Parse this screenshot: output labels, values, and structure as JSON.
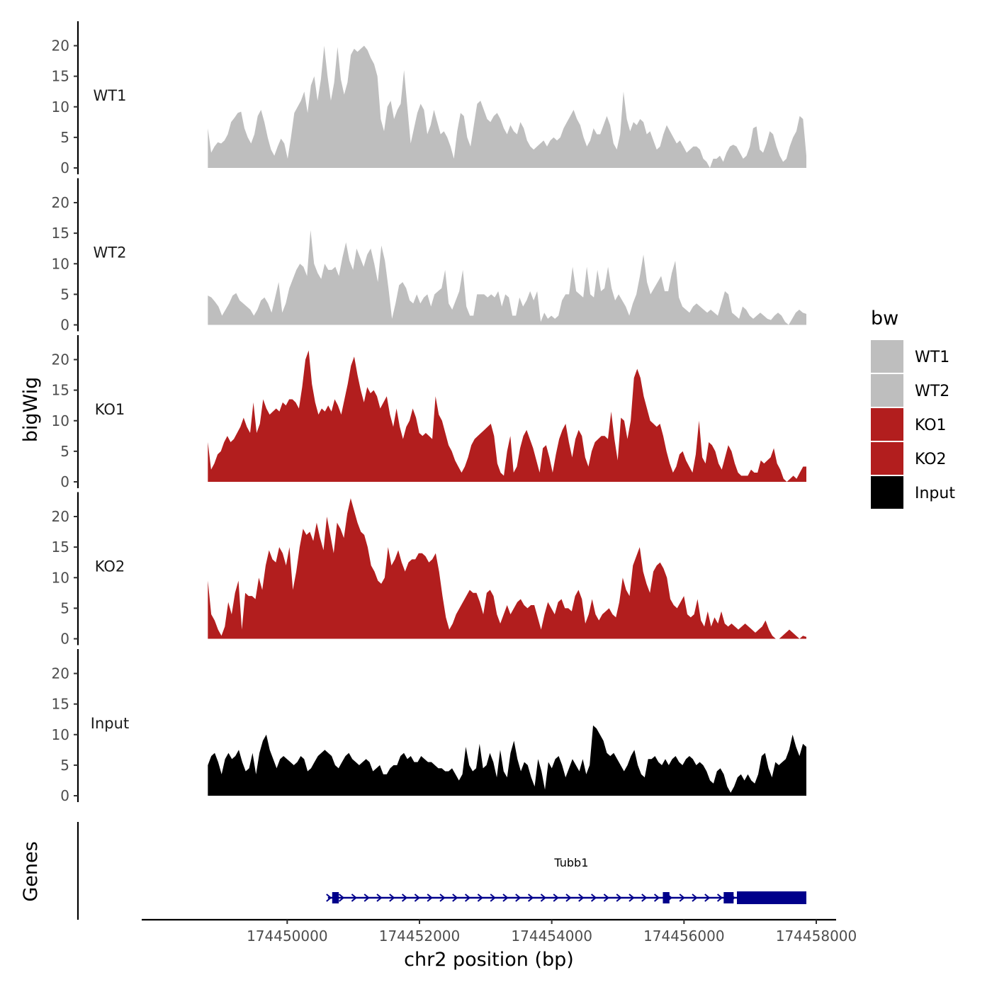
{
  "chart_data": {
    "type": "area",
    "region": {
      "chrom": "chr2",
      "start": 174448800,
      "end": 174457850
    },
    "xlabel": "chr2 position (bp)",
    "xlim": [
      174447800,
      174458300
    ],
    "x_ticks": [
      174450000,
      174452000,
      174454000,
      174456000,
      174458000
    ],
    "x_tick_labels": [
      "174450000",
      "174452000",
      "174454000",
      "174456000",
      "174458000"
    ],
    "ylabel": "bigWig",
    "ylim": [
      0,
      24
    ],
    "y_ticks": [
      0,
      5,
      10,
      15,
      20
    ],
    "y_tick_labels": [
      "0",
      "5",
      "10",
      "15",
      "20"
    ],
    "legend": {
      "title": "bw",
      "position": "right",
      "entries": [
        {
          "label": "WT1",
          "color": "#bebebe"
        },
        {
          "label": "WT2",
          "color": "#bebebe"
        },
        {
          "label": "KO1",
          "color": "#b21e1e"
        },
        {
          "label": "KO2",
          "color": "#b21e1e"
        },
        {
          "label": "Input",
          "color": "#000000"
        }
      ]
    },
    "tracks": [
      {
        "name": "WT1",
        "color": "#bebebe",
        "values": [
          6.5,
          2.5,
          3.5,
          4.2,
          4.0,
          4.5,
          5.5,
          7.5,
          8.2,
          9.0,
          9.2,
          6.5,
          5.0,
          4.0,
          5.5,
          8.5,
          9.5,
          7.5,
          5.0,
          3.0,
          2.0,
          3.5,
          4.8,
          4.0,
          1.5,
          5.0,
          9.0,
          10.0,
          11.0,
          12.5,
          9.0,
          13.5,
          15.0,
          11.0,
          14.5,
          20.0,
          15.0,
          11.0,
          14.0,
          19.8,
          14.5,
          12.0,
          14.0,
          18.5,
          19.5,
          19.0,
          19.5,
          20.0,
          19.3,
          18.0,
          17.0,
          15.0,
          8.0,
          6.0,
          10.0,
          11.0,
          8.0,
          9.5,
          10.5,
          16.0,
          10.0,
          4.0,
          6.5,
          9.0,
          10.5,
          9.5,
          5.5,
          7.0,
          9.5,
          7.5,
          5.5,
          6.0,
          5.0,
          3.5,
          1.5,
          6.0,
          9.0,
          8.5,
          5.0,
          3.5,
          7.0,
          10.5,
          11.0,
          9.5,
          8.0,
          7.5,
          8.5,
          9.0,
          8.0,
          6.5,
          5.5,
          7.0,
          6.0,
          5.5,
          7.5,
          6.5,
          4.5,
          3.5,
          3.0,
          3.5,
          4.0,
          4.5,
          3.5,
          4.5,
          5.0,
          4.5,
          5.0,
          6.5,
          7.5,
          8.5,
          9.5,
          8.0,
          7.0,
          5.0,
          3.5,
          4.5,
          6.5,
          5.5,
          5.5,
          7.0,
          8.5,
          7.0,
          4.0,
          3.0,
          5.5,
          12.5,
          8.0,
          6.0,
          7.5,
          7.0,
          8.0,
          7.5,
          5.5,
          6.0,
          4.5,
          3.0,
          3.5,
          5.5,
          7.0,
          6.0,
          5.0,
          4.0,
          4.5,
          3.5,
          2.5,
          3.0,
          3.5,
          3.5,
          3.0,
          1.5,
          1.0,
          0.0,
          1.5,
          1.5,
          2.0,
          1.0,
          2.5,
          3.5,
          3.8,
          3.5,
          2.5,
          1.5,
          2.0,
          3.5,
          6.5,
          6.8,
          3.0,
          2.5,
          4.0,
          6.0,
          5.5,
          3.5,
          2.0,
          1.0,
          1.5,
          3.5,
          5.0,
          6.0,
          8.5,
          8.0,
          2.0
        ]
      },
      {
        "name": "WT2",
        "color": "#bebebe",
        "values": [
          4.8,
          4.5,
          3.8,
          3.0,
          1.5,
          2.5,
          3.5,
          4.8,
          5.2,
          4.0,
          3.5,
          3.0,
          2.5,
          1.5,
          2.5,
          4.0,
          4.5,
          3.5,
          2.0,
          4.5,
          7.0,
          2.0,
          3.5,
          6.0,
          7.5,
          9.0,
          10.0,
          9.5,
          8.0,
          15.5,
          10.0,
          8.5,
          7.5,
          10.0,
          9.0,
          9.0,
          9.5,
          8.0,
          11.0,
          13.5,
          10.5,
          9.0,
          12.5,
          11.0,
          9.5,
          11.5,
          12.5,
          10.0,
          7.0,
          13.0,
          10.5,
          6.0,
          1.0,
          3.5,
          6.5,
          7.0,
          6.0,
          4.0,
          3.5,
          5.0,
          3.5,
          4.5,
          5.0,
          3.0,
          5.0,
          5.5,
          6.0,
          9.0,
          3.5,
          2.5,
          4.0,
          5.5,
          9.0,
          3.0,
          1.5,
          1.5,
          5.0,
          5.0,
          5.0,
          4.5,
          5.0,
          4.5,
          5.5,
          3.0,
          5.0,
          4.5,
          1.5,
          1.5,
          4.5,
          3.0,
          4.0,
          5.5,
          4.0,
          5.5,
          0.5,
          2.0,
          1.0,
          1.5,
          1.0,
          1.5,
          4.0,
          5.0,
          5.0,
          9.5,
          5.5,
          5.0,
          4.5,
          9.5,
          5.0,
          4.5,
          9.0,
          5.5,
          6.0,
          9.5,
          6.0,
          4.0,
          5.0,
          4.0,
          3.0,
          1.5,
          3.5,
          5.0,
          8.0,
          11.5,
          7.0,
          5.0,
          6.0,
          7.0,
          8.0,
          5.5,
          5.5,
          8.5,
          10.5,
          4.5,
          3.0,
          2.5,
          2.0,
          3.0,
          3.5,
          3.0,
          2.5,
          2.0,
          2.5,
          2.0,
          1.5,
          3.5,
          5.5,
          5.0,
          2.0,
          1.5,
          1.0,
          3.0,
          2.5,
          1.5,
          1.0,
          1.5,
          2.0,
          1.5,
          1.0,
          0.8,
          1.5,
          2.0,
          1.5,
          0.5,
          0.0,
          1.0,
          2.0,
          2.5,
          2.0,
          1.8
        ]
      },
      {
        "name": "KO1",
        "color": "#b21e1e",
        "values": [
          6.5,
          2.0,
          3.0,
          4.5,
          5.0,
          6.5,
          7.5,
          6.5,
          7.0,
          8.0,
          9.0,
          10.5,
          9.0,
          8.0,
          13.0,
          8.0,
          9.5,
          13.5,
          12.0,
          11.0,
          11.5,
          12.0,
          11.5,
          13.0,
          12.5,
          13.5,
          13.5,
          13.0,
          12.0,
          15.5,
          20.0,
          21.5,
          16.0,
          13.0,
          11.0,
          12.0,
          11.5,
          12.5,
          11.5,
          13.5,
          12.5,
          11.0,
          13.5,
          16.0,
          19.0,
          20.5,
          17.5,
          15.0,
          13.0,
          15.5,
          14.5,
          15.0,
          14.0,
          12.0,
          13.0,
          14.0,
          11.0,
          9.0,
          12.0,
          9.0,
          7.0,
          9.0,
          10.0,
          12.0,
          10.5,
          8.0,
          7.5,
          8.0,
          7.5,
          7.0,
          14.0,
          11.0,
          10.0,
          8.0,
          6.0,
          5.0,
          3.5,
          2.5,
          1.5,
          2.5,
          4.0,
          6.0,
          7.0,
          7.5,
          8.0,
          8.5,
          9.0,
          9.5,
          7.5,
          3.0,
          1.5,
          1.0,
          5.0,
          7.5,
          1.5,
          2.5,
          5.5,
          7.5,
          8.5,
          7.0,
          5.5,
          3.5,
          1.5,
          5.5,
          6.0,
          4.0,
          1.5,
          4.5,
          7.0,
          8.5,
          9.5,
          6.5,
          4.0,
          7.0,
          8.5,
          7.5,
          4.0,
          2.5,
          5.0,
          6.5,
          7.0,
          7.5,
          7.5,
          7.0,
          11.5,
          7.0,
          3.5,
          10.5,
          10.0,
          7.0,
          10.0,
          17.0,
          18.5,
          17.0,
          14.0,
          12.0,
          10.0,
          9.5,
          9.0,
          9.5,
          7.5,
          5.0,
          3.0,
          1.5,
          2.5,
          4.5,
          5.0,
          3.5,
          2.5,
          1.5,
          4.5,
          10.0,
          4.0,
          3.0,
          6.5,
          6.0,
          5.0,
          3.0,
          2.0,
          4.0,
          6.0,
          5.0,
          3.0,
          1.5,
          1.0,
          1.0,
          1.0,
          2.0,
          1.5,
          1.5,
          3.5,
          3.0,
          3.5,
          4.0,
          5.5,
          3.0,
          2.0,
          0.5,
          0.0,
          0.5,
          1.0,
          0.5,
          1.5,
          2.5,
          2.5
        ]
      },
      {
        "name": "KO2",
        "color": "#b21e1e",
        "values": [
          9.5,
          4.0,
          3.0,
          1.5,
          0.5,
          2.0,
          6.0,
          4.0,
          7.5,
          9.5,
          1.5,
          7.5,
          7.0,
          7.0,
          6.5,
          10.0,
          8.0,
          12.0,
          14.5,
          13.0,
          12.5,
          15.0,
          14.0,
          12.0,
          15.0,
          8.0,
          11.0,
          15.0,
          18.0,
          17.0,
          17.5,
          16.0,
          19.0,
          16.5,
          14.5,
          20.0,
          17.0,
          14.0,
          19.0,
          18.0,
          16.5,
          20.5,
          23.0,
          21.0,
          19.0,
          17.5,
          17.0,
          15.0,
          12.0,
          11.0,
          9.5,
          9.0,
          10.0,
          15.0,
          12.0,
          13.0,
          14.5,
          12.5,
          11.0,
          12.5,
          13.0,
          13.0,
          14.0,
          14.0,
          13.5,
          12.5,
          13.0,
          14.0,
          11.0,
          7.0,
          3.5,
          1.5,
          2.5,
          4.0,
          5.0,
          6.0,
          7.0,
          8.0,
          7.5,
          7.5,
          6.0,
          4.0,
          7.5,
          8.0,
          7.0,
          4.0,
          2.5,
          4.0,
          5.5,
          4.0,
          5.0,
          6.0,
          6.5,
          5.5,
          5.0,
          5.5,
          5.5,
          3.5,
          1.5,
          4.0,
          6.0,
          5.0,
          4.0,
          6.0,
          6.5,
          5.0,
          5.0,
          4.5,
          7.0,
          8.0,
          6.5,
          2.5,
          4.0,
          6.5,
          4.0,
          3.0,
          4.0,
          4.5,
          5.0,
          4.0,
          3.5,
          6.0,
          10.0,
          8.0,
          7.0,
          12.0,
          13.5,
          15.0,
          11.0,
          9.0,
          7.5,
          11.0,
          12.0,
          12.5,
          11.5,
          10.0,
          6.5,
          5.5,
          5.0,
          6.0,
          7.0,
          4.0,
          3.5,
          4.0,
          6.5,
          3.0,
          2.0,
          4.5,
          2.0,
          3.5,
          2.5,
          4.5,
          2.5,
          2.0,
          2.5,
          2.0,
          1.5,
          2.0,
          2.5,
          2.0,
          1.5,
          1.0,
          1.5,
          2.0,
          3.0,
          1.5,
          0.5,
          0.0,
          0.0,
          0.5,
          1.0,
          1.5,
          1.0,
          0.5,
          0.0,
          0.5,
          0.3
        ]
      },
      {
        "name": "Input",
        "color": "#000000",
        "values": [
          5.0,
          6.5,
          7.0,
          5.5,
          3.5,
          6.0,
          7.0,
          6.0,
          6.5,
          7.5,
          5.5,
          4.0,
          4.5,
          7.0,
          3.5,
          7.0,
          9.0,
          10.0,
          7.5,
          6.0,
          4.5,
          6.0,
          6.5,
          6.0,
          5.5,
          5.0,
          5.5,
          6.5,
          6.0,
          4.0,
          4.5,
          5.5,
          6.5,
          7.0,
          7.5,
          7.0,
          6.5,
          5.0,
          4.5,
          5.5,
          6.5,
          7.0,
          6.0,
          5.5,
          5.0,
          5.5,
          6.0,
          5.5,
          4.0,
          4.5,
          5.0,
          3.5,
          3.5,
          4.5,
          5.0,
          5.0,
          6.5,
          7.0,
          6.0,
          6.5,
          5.5,
          5.5,
          6.5,
          6.0,
          5.5,
          5.5,
          5.0,
          4.5,
          4.5,
          4.0,
          4.0,
          4.5,
          3.5,
          2.5,
          3.5,
          8.0,
          5.0,
          4.0,
          4.5,
          8.5,
          4.5,
          5.0,
          7.0,
          5.5,
          3.0,
          7.5,
          4.0,
          3.0,
          7.0,
          9.0,
          6.0,
          4.0,
          5.5,
          5.0,
          3.0,
          1.5,
          6.0,
          4.0,
          1.0,
          5.5,
          4.5,
          6.0,
          6.5,
          5.0,
          3.0,
          4.5,
          6.0,
          5.0,
          4.0,
          6.0,
          3.5,
          5.0,
          11.5,
          11.0,
          10.0,
          9.0,
          7.0,
          6.5,
          7.0,
          6.0,
          5.0,
          4.0,
          5.0,
          6.5,
          7.5,
          5.0,
          3.5,
          3.0,
          6.0,
          6.0,
          6.5,
          5.5,
          5.0,
          6.0,
          5.0,
          6.0,
          6.5,
          5.5,
          5.0,
          6.0,
          6.5,
          6.0,
          5.0,
          5.5,
          5.0,
          4.0,
          2.5,
          2.0,
          4.0,
          4.5,
          3.5,
          1.5,
          0.5,
          1.5,
          3.0,
          3.5,
          2.5,
          3.5,
          2.5,
          2.0,
          3.5,
          6.5,
          7.0,
          4.5,
          3.0,
          5.5,
          5.0,
          5.5,
          6.0,
          7.5,
          10.0,
          8.0,
          6.5,
          8.5,
          8.0
        ]
      }
    ],
    "genes_track": {
      "label": "Genes",
      "gene": {
        "name": "Tubb1",
        "strand": "+",
        "start": 174450680,
        "end": 174457850,
        "exons": [
          [
            174450680,
            174450780
          ],
          [
            174455680,
            174455780
          ],
          [
            174456600,
            174456750
          ],
          [
            174456800,
            174457850
          ]
        ],
        "color": "#00008b"
      }
    }
  }
}
